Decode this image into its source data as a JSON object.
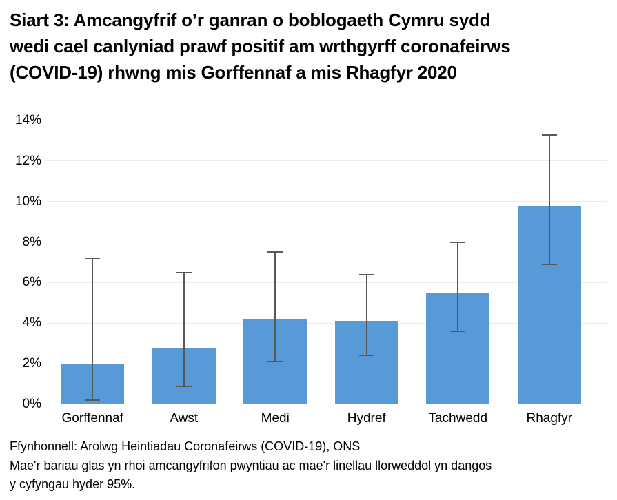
{
  "chart_data": {
    "type": "bar",
    "title": "Siart 3: Amcangyfrif o’r ganran o boblogaeth Cymru sydd wedi cael canlyniad prawf positif am wrthgyrff coronafeirws (COVID-19) rhwng mis Gorffennaf a mis Rhagfyr 2020",
    "title_lines": [
      "Siart 3: Amcangyfrif o’r ganran o boblogaeth Cymru sydd",
      "wedi cael canlyniad prawf positif am wrthgyrff coronafeirws",
      "(COVID-19) rhwng mis Gorffennaf a mis Rhagfyr 2020"
    ],
    "categories": [
      "Gorffennaf",
      "Awst",
      "Medi",
      "Hydref",
      "Tachwedd",
      "Rhagfyr"
    ],
    "values": [
      2.0,
      2.8,
      4.2,
      4.1,
      5.5,
      9.8
    ],
    "ci_low": [
      0.2,
      0.9,
      2.1,
      2.4,
      3.6,
      6.9
    ],
    "ci_high": [
      7.2,
      6.5,
      7.5,
      6.4,
      8.0,
      13.3
    ],
    "ylim": [
      0,
      14
    ],
    "yticks": [
      0,
      2,
      4,
      6,
      8,
      10,
      12,
      14
    ],
    "ytick_labels": [
      "0%",
      "2%",
      "4%",
      "6%",
      "8%",
      "10%",
      "12%",
      "14%"
    ],
    "xlabel": "",
    "ylabel": "",
    "grid": true,
    "legend": "none",
    "bar_color": "#5899d8",
    "error_bar_color": "#595959",
    "gridline_color": "#ececec",
    "axis_line_color": "#d6d6d6"
  },
  "footer": {
    "source": "Ffynhonnell: Arolwg Heintiadau Coronafeirws (COVID-19), ONS",
    "note": "Mae'r bariau glas yn rhoi amcangyfrifon pwyntiau ac mae'r linellau llorweddol yn dangos y cyfyngau hyder 95%.",
    "note_lines": [
      "Mae'r bariau glas yn rhoi amcangyfrifon pwyntiau ac mae'r linellau llorweddol yn dangos",
      "y cyfyngau hyder 95%."
    ]
  }
}
